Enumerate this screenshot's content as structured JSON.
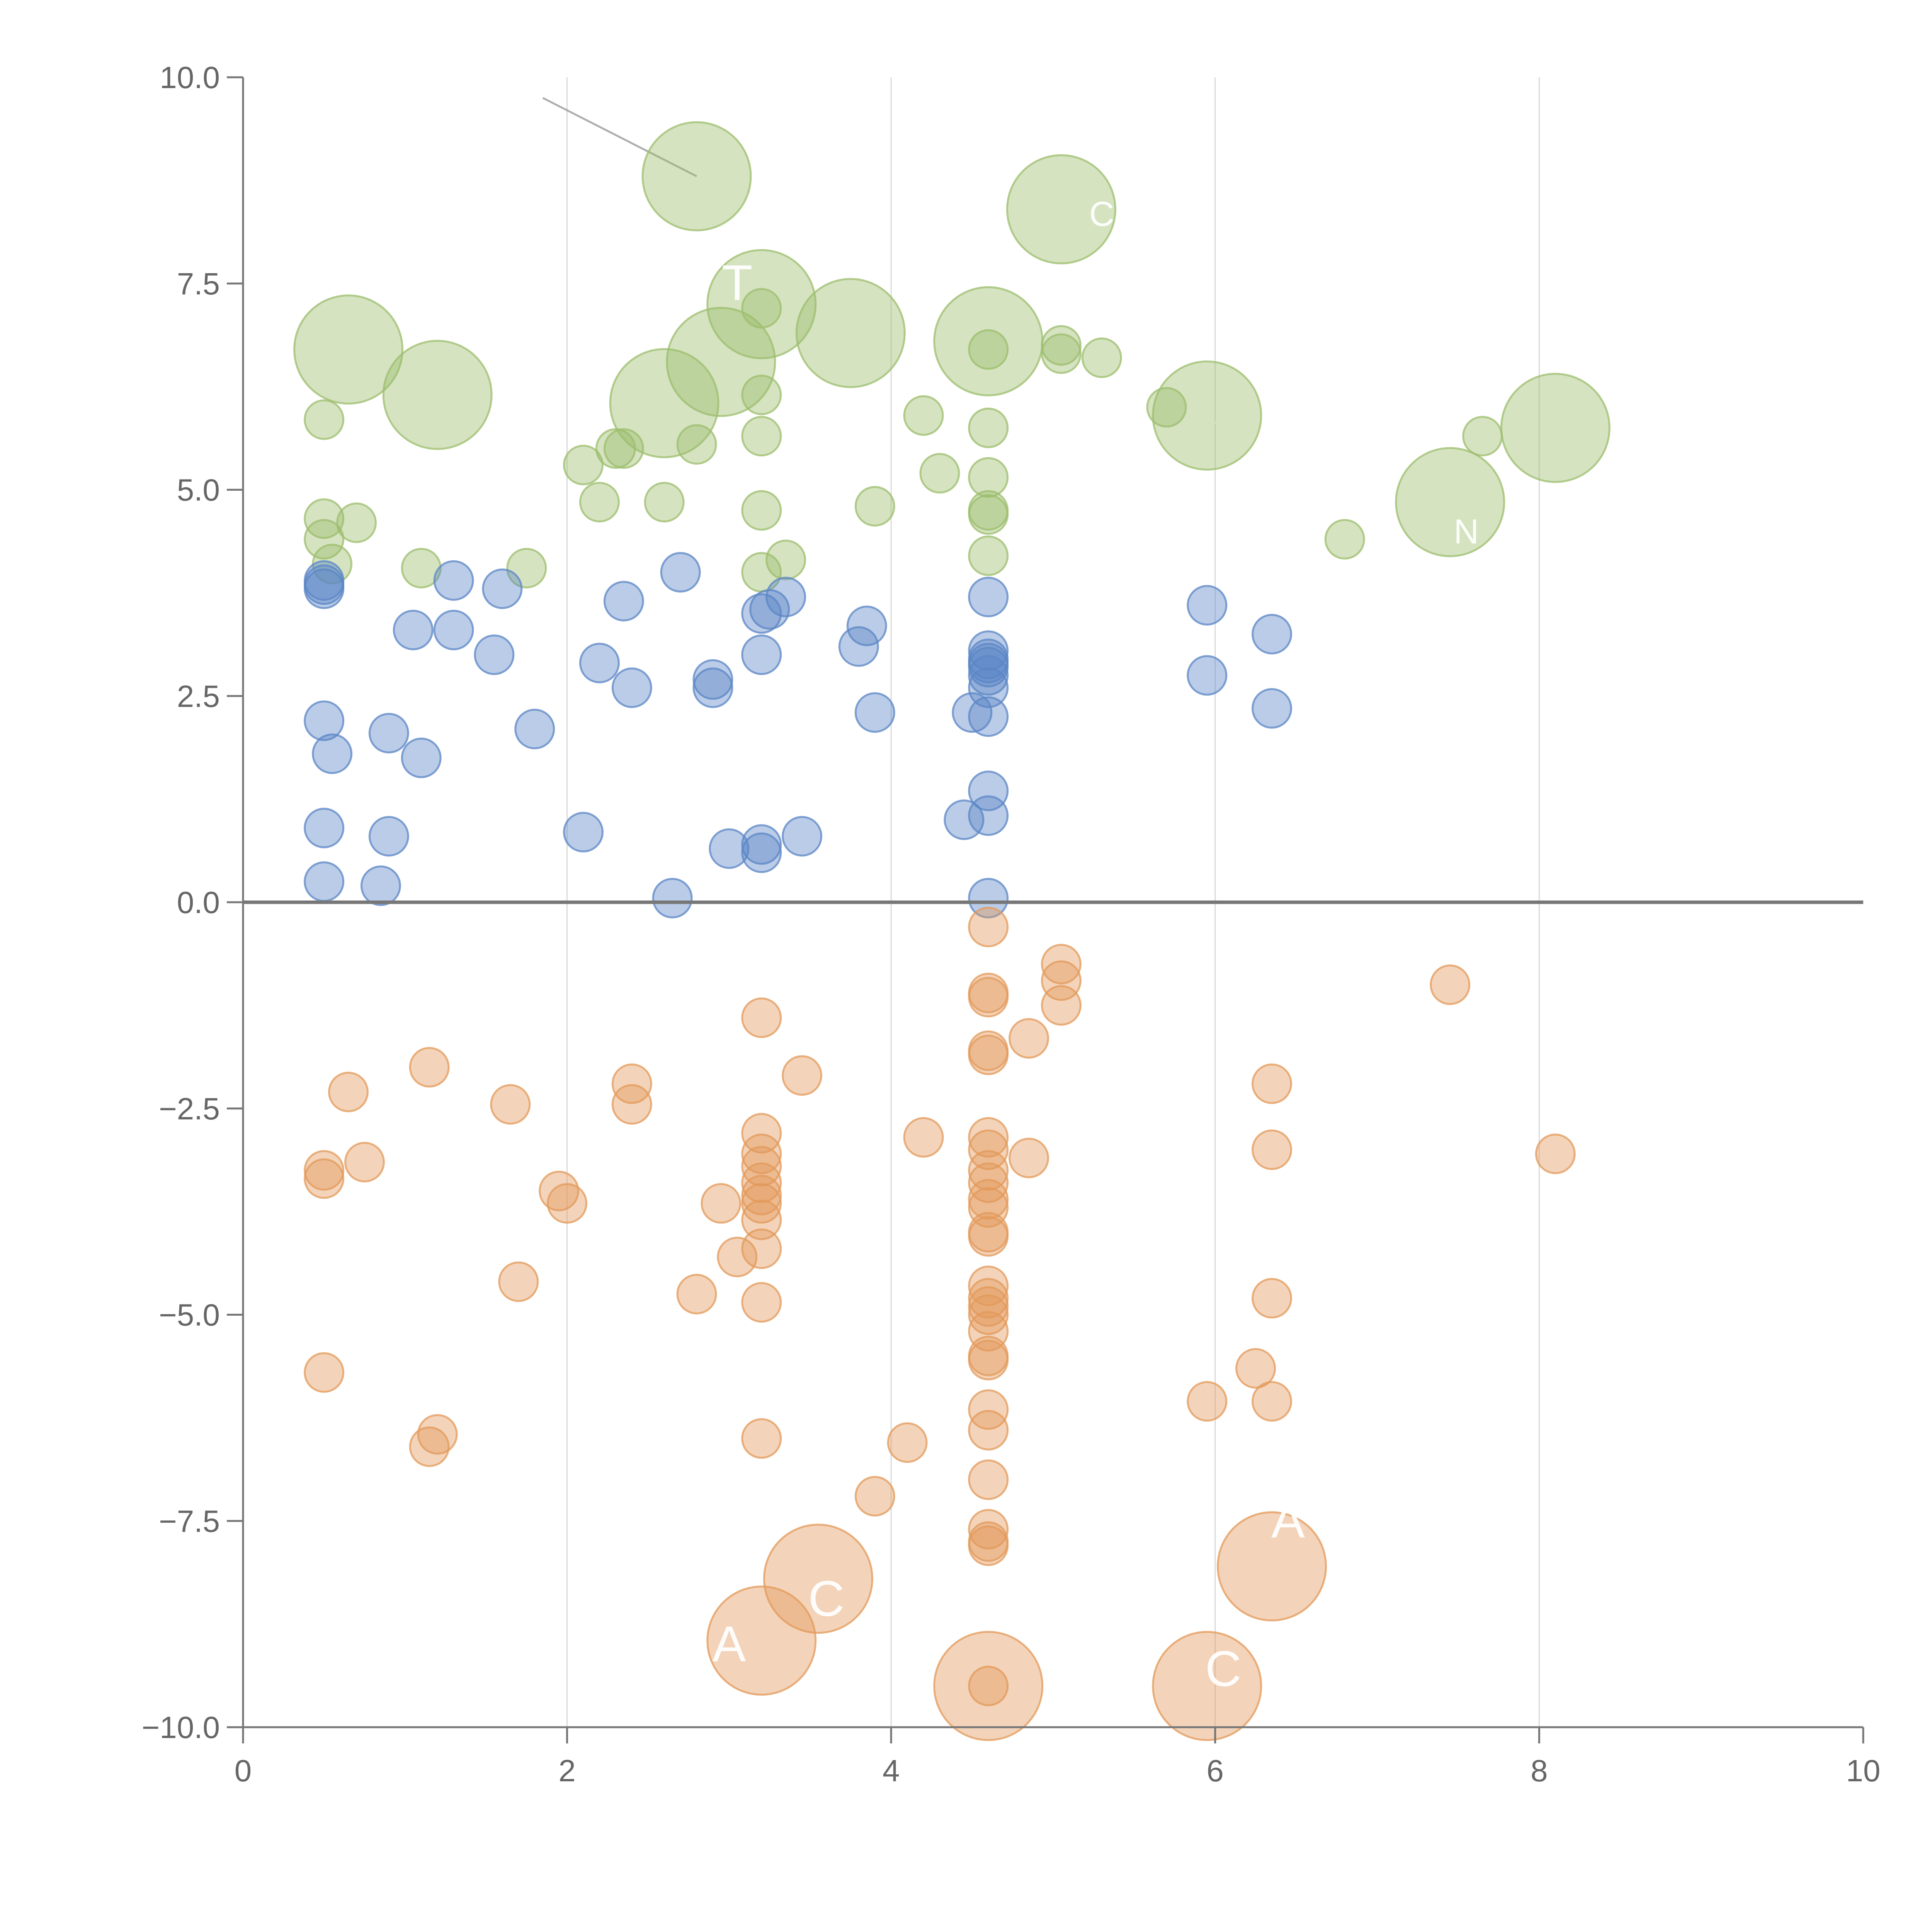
{
  "colors": {
    "green": "#9cbd6c",
    "blue": "#5b86c6",
    "orange": "#e3995a",
    "axis": "#777777",
    "grid": "#d9d9d9",
    "tick_text": "#666666",
    "label": "#ffffff",
    "leader": "#9a9a9a"
  },
  "chart_data": {
    "type": "scatter",
    "title": "",
    "xlabel": "",
    "ylabel": "",
    "xlim": [
      0,
      10
    ],
    "ylim": [
      -10,
      10
    ],
    "x_ticks": [
      0,
      2,
      4,
      6,
      8,
      10
    ],
    "x_tick_labels": [
      "0",
      "2",
      "4",
      "6",
      "8",
      "10"
    ],
    "y_ticks": [
      10,
      7.5,
      5,
      2.5,
      0,
      -2.5,
      -5,
      -7.5,
      -10
    ],
    "y_tick_labels": [
      "10.0",
      "7.5",
      "5.0",
      "2.5",
      "0.0",
      "−2.5",
      "−5.0",
      "−7.5",
      "−10.0"
    ],
    "vertical_grid": true,
    "zero_line": true,
    "series": [
      {
        "name": "green",
        "color_key": "green",
        "points": [
          [
            2.8,
            8.8,
            1.4
          ],
          [
            5.05,
            8.4,
            1.4
          ],
          [
            3.2,
            7.25,
            1.4
          ],
          [
            0.65,
            6.7,
            1.4
          ],
          [
            3.75,
            6.9,
            1.4
          ],
          [
            4.6,
            6.8,
            1.4
          ],
          [
            2.95,
            6.55,
            1.4
          ],
          [
            1.2,
            6.15,
            1.4
          ],
          [
            2.6,
            6.05,
            1.4
          ],
          [
            5.95,
            5.9,
            1.4
          ],
          [
            8.1,
            5.75,
            1.4
          ],
          [
            7.45,
            4.85,
            1.4
          ],
          [
            5.05,
            6.75,
            0.5
          ],
          [
            5.05,
            6.65,
            0.5
          ],
          [
            4.6,
            6.7,
            0.5
          ],
          [
            5.3,
            6.6,
            0.5
          ],
          [
            3.2,
            7.2,
            0.5
          ],
          [
            3.2,
            6.15,
            0.5
          ],
          [
            0.5,
            5.85,
            0.5
          ],
          [
            4.2,
            5.9,
            0.5
          ],
          [
            5.7,
            6.0,
            0.5
          ],
          [
            4.6,
            5.75,
            0.5
          ],
          [
            3.2,
            5.65,
            0.5
          ],
          [
            2.8,
            5.55,
            0.5
          ],
          [
            2.3,
            5.5,
            0.5
          ],
          [
            2.35,
            5.5,
            0.5
          ],
          [
            2.1,
            5.3,
            0.5
          ],
          [
            4.3,
            5.2,
            0.5
          ],
          [
            4.6,
            5.15,
            0.5
          ],
          [
            7.65,
            5.65,
            0.5
          ],
          [
            2.2,
            4.85,
            0.5
          ],
          [
            2.6,
            4.85,
            0.5
          ],
          [
            3.9,
            4.8,
            0.5
          ],
          [
            3.2,
            4.75,
            0.5
          ],
          [
            4.6,
            4.75,
            0.5
          ],
          [
            4.6,
            4.7,
            0.5
          ],
          [
            0.5,
            4.65,
            0.5
          ],
          [
            0.7,
            4.6,
            0.5
          ],
          [
            0.5,
            4.4,
            0.5
          ],
          [
            6.8,
            4.4,
            0.5
          ],
          [
            4.6,
            4.2,
            0.5
          ],
          [
            3.35,
            4.15,
            0.5
          ],
          [
            0.55,
            4.1,
            0.5
          ],
          [
            1.1,
            4.05,
            0.5
          ],
          [
            1.75,
            4.05,
            0.5
          ],
          [
            3.2,
            4.0,
            0.5
          ]
        ]
      },
      {
        "name": "blue",
        "color_key": "blue",
        "points": [
          [
            0.5,
            3.9,
            0.5
          ],
          [
            0.5,
            3.85,
            0.5
          ],
          [
            0.5,
            3.8,
            0.5
          ],
          [
            1.3,
            3.9,
            0.5
          ],
          [
            1.6,
            3.8,
            0.5
          ],
          [
            2.7,
            4.0,
            0.5
          ],
          [
            2.35,
            3.65,
            0.5
          ],
          [
            3.35,
            3.7,
            0.5
          ],
          [
            4.6,
            3.7,
            0.5
          ],
          [
            5.95,
            3.6,
            0.5
          ],
          [
            3.2,
            3.5,
            0.5
          ],
          [
            3.25,
            3.55,
            0.5
          ],
          [
            3.85,
            3.35,
            0.5
          ],
          [
            1.05,
            3.3,
            0.5
          ],
          [
            1.3,
            3.3,
            0.5
          ],
          [
            6.35,
            3.25,
            0.5
          ],
          [
            3.8,
            3.1,
            0.5
          ],
          [
            1.55,
            3.0,
            0.5
          ],
          [
            3.2,
            3.0,
            0.5
          ],
          [
            4.6,
            3.05,
            0.5
          ],
          [
            4.6,
            2.95,
            0.5
          ],
          [
            4.6,
            2.9,
            0.5
          ],
          [
            4.6,
            2.85,
            0.5
          ],
          [
            2.2,
            2.9,
            0.5
          ],
          [
            5.95,
            2.75,
            0.5
          ],
          [
            4.6,
            2.75,
            0.5
          ],
          [
            2.9,
            2.7,
            0.5
          ],
          [
            2.9,
            2.6,
            0.5
          ],
          [
            2.4,
            2.6,
            0.5
          ],
          [
            4.6,
            2.6,
            0.5
          ],
          [
            6.35,
            2.35,
            0.5
          ],
          [
            3.9,
            2.3,
            0.5
          ],
          [
            4.5,
            2.3,
            0.5
          ],
          [
            4.6,
            2.25,
            0.5
          ],
          [
            0.5,
            2.2,
            0.5
          ],
          [
            0.9,
            2.05,
            0.5
          ],
          [
            1.8,
            2.1,
            0.5
          ],
          [
            0.55,
            1.8,
            0.5
          ],
          [
            1.1,
            1.75,
            0.5
          ],
          [
            4.6,
            1.35,
            0.5
          ],
          [
            4.45,
            1.0,
            0.5
          ],
          [
            4.6,
            1.05,
            0.5
          ],
          [
            0.5,
            0.9,
            0.5
          ],
          [
            2.1,
            0.85,
            0.5
          ],
          [
            0.9,
            0.8,
            0.5
          ],
          [
            3.45,
            0.8,
            0.5
          ],
          [
            3.2,
            0.7,
            0.5
          ],
          [
            3.0,
            0.65,
            0.5
          ],
          [
            3.2,
            0.6,
            0.5
          ],
          [
            0.5,
            0.25,
            0.5
          ],
          [
            0.85,
            0.2,
            0.5
          ],
          [
            2.65,
            0.05,
            0.5
          ],
          [
            4.6,
            0.05,
            0.5
          ]
        ]
      },
      {
        "name": "orange",
        "color_key": "orange",
        "points": [
          [
            4.6,
            -0.3,
            0.5
          ],
          [
            5.05,
            -0.75,
            0.5
          ],
          [
            5.05,
            -0.95,
            0.5
          ],
          [
            7.45,
            -1.0,
            0.5
          ],
          [
            4.6,
            -1.1,
            0.5
          ],
          [
            4.6,
            -1.15,
            0.5
          ],
          [
            5.05,
            -1.25,
            0.5
          ],
          [
            3.2,
            -1.4,
            0.5
          ],
          [
            4.85,
            -1.65,
            0.5
          ],
          [
            4.6,
            -1.8,
            0.5
          ],
          [
            4.6,
            -1.85,
            0.5
          ],
          [
            1.15,
            -2.0,
            0.5
          ],
          [
            3.45,
            -2.1,
            0.5
          ],
          [
            2.4,
            -2.2,
            0.5
          ],
          [
            6.35,
            -2.2,
            0.5
          ],
          [
            0.65,
            -2.3,
            0.5
          ],
          [
            2.4,
            -2.45,
            0.5
          ],
          [
            1.65,
            -2.45,
            0.5
          ],
          [
            3.2,
            -2.8,
            0.5
          ],
          [
            4.6,
            -2.85,
            0.5
          ],
          [
            4.2,
            -2.85,
            0.5
          ],
          [
            4.6,
            -3.0,
            0.5
          ],
          [
            6.35,
            -3.0,
            0.5
          ],
          [
            8.1,
            -3.05,
            0.5
          ],
          [
            3.2,
            -3.05,
            0.5
          ],
          [
            4.85,
            -3.1,
            0.5
          ],
          [
            0.75,
            -3.15,
            0.5
          ],
          [
            3.2,
            -3.2,
            0.5
          ],
          [
            4.6,
            -3.25,
            0.5
          ],
          [
            0.5,
            -3.25,
            0.5
          ],
          [
            0.5,
            -3.35,
            0.5
          ],
          [
            3.2,
            -3.4,
            0.5
          ],
          [
            4.6,
            -3.4,
            0.5
          ],
          [
            1.95,
            -3.5,
            0.5
          ],
          [
            3.2,
            -3.55,
            0.5
          ],
          [
            2.0,
            -3.65,
            0.5
          ],
          [
            2.95,
            -3.65,
            0.5
          ],
          [
            4.6,
            -3.6,
            0.5
          ],
          [
            4.6,
            -3.7,
            0.5
          ],
          [
            3.2,
            -3.65,
            0.5
          ],
          [
            3.2,
            -3.85,
            0.5
          ],
          [
            4.6,
            -4.0,
            0.5
          ],
          [
            4.6,
            -4.05,
            0.5
          ],
          [
            3.2,
            -4.2,
            0.5
          ],
          [
            3.05,
            -4.3,
            0.5
          ],
          [
            1.7,
            -4.6,
            0.5
          ],
          [
            4.6,
            -4.65,
            0.5
          ],
          [
            2.8,
            -4.75,
            0.5
          ],
          [
            4.6,
            -4.8,
            0.5
          ],
          [
            6.35,
            -4.8,
            0.5
          ],
          [
            4.6,
            -4.9,
            0.5
          ],
          [
            3.2,
            -4.85,
            0.5
          ],
          [
            4.6,
            -5.0,
            0.5
          ],
          [
            4.6,
            -5.2,
            0.5
          ],
          [
            4.6,
            -5.5,
            0.5
          ],
          [
            4.6,
            -5.55,
            0.5
          ],
          [
            6.25,
            -5.65,
            0.5
          ],
          [
            0.5,
            -5.7,
            0.5
          ],
          [
            5.95,
            -6.05,
            0.5
          ],
          [
            6.35,
            -6.05,
            0.5
          ],
          [
            4.6,
            -6.15,
            0.5
          ],
          [
            4.6,
            -6.4,
            0.5
          ],
          [
            1.2,
            -6.45,
            0.5
          ],
          [
            3.2,
            -6.5,
            0.5
          ],
          [
            4.1,
            -6.55,
            0.5
          ],
          [
            1.15,
            -6.6,
            0.5
          ],
          [
            4.6,
            -7.0,
            0.5
          ],
          [
            3.9,
            -7.2,
            0.5
          ],
          [
            4.6,
            -7.6,
            0.5
          ],
          [
            4.6,
            -7.8,
            0.5
          ],
          [
            4.6,
            -7.75,
            0.5
          ],
          [
            4.6,
            -9.5,
            0.5
          ],
          [
            3.55,
            -8.2,
            1.4
          ],
          [
            6.35,
            -8.05,
            1.4
          ],
          [
            3.2,
            -8.95,
            1.4
          ],
          [
            4.6,
            -9.5,
            1.4
          ],
          [
            5.95,
            -9.5,
            1.4
          ]
        ]
      }
    ],
    "annotations": [
      {
        "text": "T",
        "x": 3.05,
        "y": 7.3,
        "size": "large"
      },
      {
        "text": "C",
        "x": 3.6,
        "y": -8.65,
        "size": "large"
      },
      {
        "text": "A",
        "x": 3.0,
        "y": -9.2,
        "size": "large"
      },
      {
        "text": "C",
        "x": 6.05,
        "y": -9.5,
        "size": "large"
      },
      {
        "text": "A",
        "x": 6.45,
        "y": -7.7,
        "size": "large"
      },
      {
        "text": "C",
        "x": 5.3,
        "y": 8.2,
        "size": "small"
      },
      {
        "text": "N",
        "x": 7.55,
        "y": 4.35,
        "size": "small"
      }
    ],
    "leader_lines": [
      {
        "x1": 1.85,
        "y1": 9.75,
        "x2": 2.8,
        "y2": 8.8,
        "color_key": "leader"
      },
      {
        "x1": 0.7,
        "y1": 6.7,
        "x2": 0.95,
        "y2": 6.7,
        "color_key": "label"
      },
      {
        "x1": 1.15,
        "y1": 6.5,
        "x2": 1.2,
        "y2": 6.2,
        "color_key": "label"
      },
      {
        "x1": 2.95,
        "y1": 6.55,
        "x2": 2.85,
        "y2": 6.85,
        "color_key": "label"
      },
      {
        "x1": 2.55,
        "y1": 6.05,
        "x2": 2.38,
        "y2": 5.9,
        "color_key": "label"
      },
      {
        "x1": 3.75,
        "y1": 6.95,
        "x2": 3.9,
        "y2": 7.05,
        "color_key": "label"
      },
      {
        "x1": 4.6,
        "y1": 6.7,
        "x2": 4.75,
        "y2": 6.45,
        "color_key": "label"
      },
      {
        "x1": 5.95,
        "y1": 5.9,
        "x2": 6.1,
        "y2": 5.65,
        "color_key": "label"
      },
      {
        "x1": 8.1,
        "y1": 5.8,
        "x2": 8.05,
        "y2": 6.1,
        "color_key": "label"
      },
      {
        "x1": 7.45,
        "y1": 4.85,
        "x2": 7.55,
        "y2": 4.6,
        "color_key": "label"
      },
      {
        "x1": 5.05,
        "y1": 8.4,
        "x2": 5.2,
        "y2": 8.35,
        "color_key": "label"
      },
      {
        "x1": 3.2,
        "y1": 7.3,
        "x2": 3.25,
        "y2": 7.55,
        "color_key": "label"
      },
      {
        "x1": 3.55,
        "y1": -8.2,
        "x2": 3.45,
        "y2": -8.55,
        "color_key": "label"
      },
      {
        "x1": 3.2,
        "y1": -8.95,
        "x2": 3.05,
        "y2": -9.15,
        "color_key": "label"
      },
      {
        "x1": 4.6,
        "y1": -9.45,
        "x2": 4.7,
        "y2": -9.2,
        "color_key": "label"
      },
      {
        "x1": 5.95,
        "y1": -9.5,
        "x2": 6.05,
        "y2": -9.45,
        "color_key": "label"
      },
      {
        "x1": 6.35,
        "y1": -8.05,
        "x2": 6.5,
        "y2": -7.85,
        "color_key": "label"
      }
    ]
  }
}
